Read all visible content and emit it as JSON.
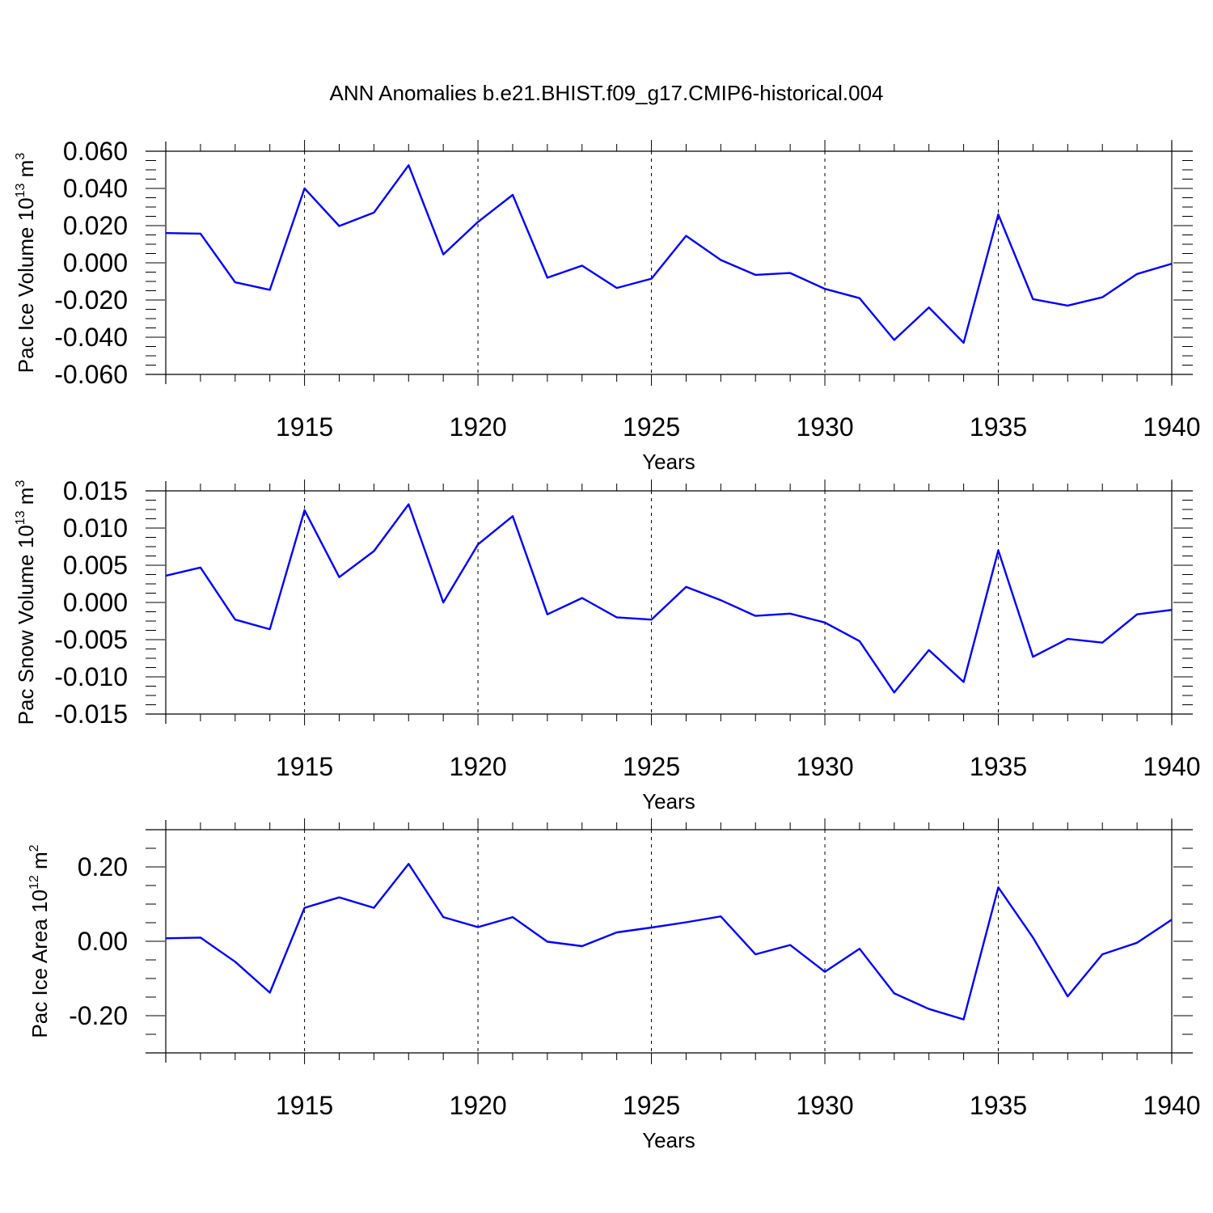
{
  "title": "ANN Anomalies b.e21.BHIST.f09_g17.CMIP6-historical.004",
  "colors": {
    "line": "#0000ff",
    "axis": "#000000",
    "grid": "#000000",
    "background": "#ffffff"
  },
  "chart_data": [
    {
      "type": "line",
      "ylabel": {
        "text": "Pac Ice Volume 10",
        "sup1": "13",
        "unit": " m",
        "sup2": "3"
      },
      "xlabel": "Years",
      "xlim": [
        1911,
        1940
      ],
      "ylim": [
        -0.06,
        0.06
      ],
      "xticks": [
        1915,
        1920,
        1925,
        1930,
        1935,
        1940
      ],
      "xtick_labels": [
        "1915",
        "1920",
        "1925",
        "1930",
        "1935",
        "1940"
      ],
      "yticks": [
        -0.06,
        -0.04,
        -0.02,
        0.0,
        0.02,
        0.04,
        0.06
      ],
      "ytick_labels": [
        "-0.060",
        "-0.040",
        "-0.020",
        "0.000",
        "0.020",
        "0.040",
        "0.060"
      ],
      "grid": "vertical dashed at major ticks",
      "x": [
        1911,
        1912,
        1913,
        1914,
        1915,
        1916,
        1917,
        1918,
        1919,
        1920,
        1921,
        1922,
        1923,
        1924,
        1925,
        1926,
        1927,
        1928,
        1929,
        1930,
        1931,
        1932,
        1933,
        1934,
        1935,
        1936,
        1937,
        1938,
        1939,
        1940
      ],
      "y": [
        0.016,
        0.0157,
        -0.0105,
        -0.0145,
        0.04,
        0.0198,
        0.027,
        0.0525,
        0.0045,
        0.022,
        0.0365,
        -0.008,
        -0.0015,
        -0.0135,
        -0.0085,
        0.0145,
        0.0015,
        -0.0065,
        -0.0055,
        -0.014,
        -0.019,
        -0.0415,
        -0.024,
        -0.043,
        0.026,
        -0.0195,
        -0.023,
        -0.0185,
        -0.006,
        -0.0005
      ]
    },
    {
      "type": "line",
      "ylabel": {
        "text": "Pac Snow Volume 10",
        "sup1": "13",
        "unit": " m",
        "sup2": "3"
      },
      "xlabel": "Years",
      "xlim": [
        1911,
        1940
      ],
      "ylim": [
        -0.015,
        0.015
      ],
      "xticks": [
        1915,
        1920,
        1925,
        1930,
        1935,
        1940
      ],
      "xtick_labels": [
        "1915",
        "1920",
        "1925",
        "1930",
        "1935",
        "1940"
      ],
      "yticks": [
        -0.015,
        -0.01,
        -0.005,
        0.0,
        0.005,
        0.01,
        0.015
      ],
      "ytick_labels": [
        "-0.015",
        "-0.010",
        "-0.005",
        "0.000",
        "0.005",
        "0.010",
        "0.015"
      ],
      "grid": "vertical dashed at major ticks",
      "x": [
        1911,
        1912,
        1913,
        1914,
        1915,
        1916,
        1917,
        1918,
        1919,
        1920,
        1921,
        1922,
        1923,
        1924,
        1925,
        1926,
        1927,
        1928,
        1929,
        1930,
        1931,
        1932,
        1933,
        1934,
        1935,
        1936,
        1937,
        1938,
        1939,
        1940
      ],
      "y": [
        0.0036,
        0.0047,
        -0.0023,
        -0.0036,
        0.0124,
        0.0034,
        0.0069,
        0.0132,
        0.0,
        0.0078,
        0.0116,
        -0.0016,
        0.0006,
        -0.002,
        -0.0023,
        0.0021,
        0.0003,
        -0.0018,
        -0.0015,
        -0.0027,
        -0.0052,
        -0.0121,
        -0.0064,
        -0.0107,
        0.007,
        -0.0073,
        -0.0049,
        -0.0054,
        -0.0016,
        -0.001
      ]
    },
    {
      "type": "line",
      "ylabel": {
        "text": "Pac Ice Area 10",
        "sup1": "12",
        "unit": " m",
        "sup2": "2"
      },
      "xlabel": "Years",
      "xlim": [
        1911,
        1940
      ],
      "ylim": [
        -0.3,
        0.3
      ],
      "xticks": [
        1915,
        1920,
        1925,
        1930,
        1935,
        1940
      ],
      "xtick_labels": [
        "1915",
        "1920",
        "1925",
        "1930",
        "1935",
        "1940"
      ],
      "yticks": [
        -0.2,
        0.0,
        0.2
      ],
      "ytick_labels": [
        "-0.20",
        "0.00",
        "0.20"
      ],
      "grid": "vertical dashed at major ticks",
      "x": [
        1911,
        1912,
        1913,
        1914,
        1915,
        1916,
        1917,
        1918,
        1919,
        1920,
        1921,
        1922,
        1923,
        1924,
        1925,
        1926,
        1927,
        1928,
        1929,
        1930,
        1931,
        1932,
        1933,
        1934,
        1935,
        1936,
        1937,
        1938,
        1939,
        1940
      ],
      "y": [
        0.008,
        0.01,
        -0.055,
        -0.138,
        0.09,
        0.118,
        0.09,
        0.208,
        0.065,
        0.038,
        0.065,
        -0.001,
        -0.013,
        0.024,
        0.037,
        0.051,
        0.067,
        -0.035,
        -0.01,
        -0.082,
        -0.02,
        -0.14,
        -0.182,
        -0.21,
        0.145,
        0.01,
        -0.148,
        -0.035,
        -0.004,
        0.058
      ]
    }
  ]
}
